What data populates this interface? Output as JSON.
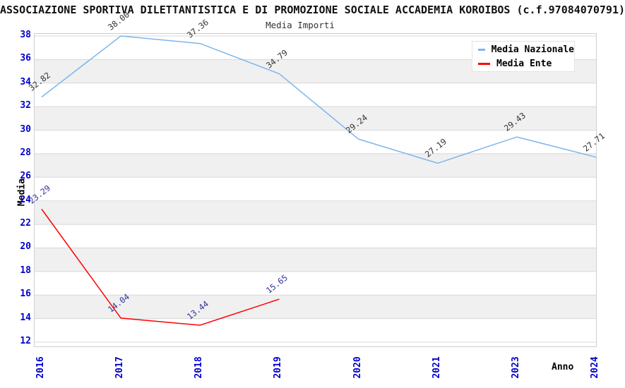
{
  "title": "ASSOCIAZIONE SPORTIVA DILETTANTISTICA E DI PROMOZIONE SOCIALE ACCADEMIA KOROIBOS (c.f.97084070791)",
  "subtitle": "Media Importi",
  "axes": {
    "y_title": "Media",
    "x_title": "Anno",
    "y_min": 12,
    "y_max": 38,
    "y_step": 2
  },
  "legend": {
    "items": [
      {
        "label": "Media Nazionale",
        "color": "#7cb5ec"
      },
      {
        "label": "Media Ente",
        "color": "#ff0000"
      }
    ]
  },
  "chart_data": {
    "type": "line",
    "title": "Media Importi",
    "categories": [
      "2016",
      "2017",
      "2018",
      "2019",
      "2020",
      "2021",
      "2023",
      "2024"
    ],
    "series": [
      {
        "name": "Media Nazionale",
        "color": "#7cb5ec",
        "label_color": "#333333",
        "values": [
          32.82,
          38.0,
          37.36,
          34.79,
          29.24,
          27.19,
          29.43,
          27.71
        ]
      },
      {
        "name": "Media Ente",
        "color": "#ff0000",
        "label_color": "#333399",
        "values": [
          23.29,
          14.04,
          13.44,
          15.65,
          null,
          null,
          null,
          null
        ]
      }
    ],
    "xlabel": "Anno",
    "ylabel": "Media",
    "ylim": [
      12,
      38
    ],
    "grid": "horizontal-gridlines-with-alternating-bands",
    "band_color": "#f0f0f0",
    "gridline_color": "#d8d8d8",
    "tick_label_color": "#0000cc",
    "legend_position": "top-right"
  }
}
